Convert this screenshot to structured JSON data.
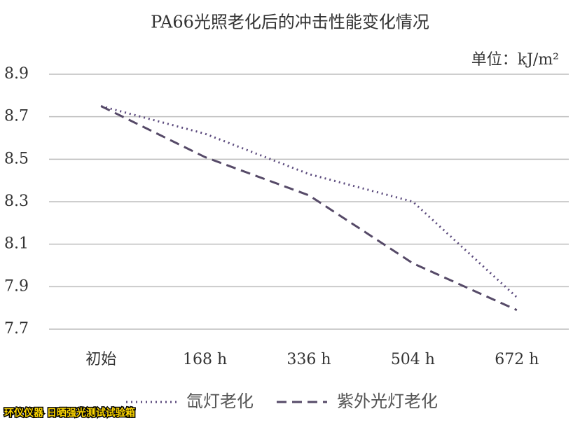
{
  "chart_data": {
    "type": "line",
    "title": "PA66光照老化后的冲击性能变化情况",
    "unit_label": "单位：kJ/m²",
    "categories": [
      "初始",
      "168 h",
      "336 h",
      "504 h",
      "672 h"
    ],
    "series": [
      {
        "name": "氙灯老化",
        "color": "#5b4a7d",
        "style": "dotted",
        "values": [
          8.75,
          8.62,
          8.43,
          8.3,
          7.85
        ]
      },
      {
        "name": "紫外光灯老化",
        "color": "#564a68",
        "style": "dashed",
        "values": [
          8.75,
          8.51,
          8.33,
          8.01,
          7.79
        ]
      }
    ],
    "ylim": [
      7.7,
      8.9
    ],
    "yticks": [
      7.7,
      7.9,
      8.1,
      8.3,
      8.5,
      8.7,
      8.9
    ],
    "grid": true,
    "legend": "bottom",
    "watermark": "环仪仪器 日晒强光测试试验箱"
  }
}
